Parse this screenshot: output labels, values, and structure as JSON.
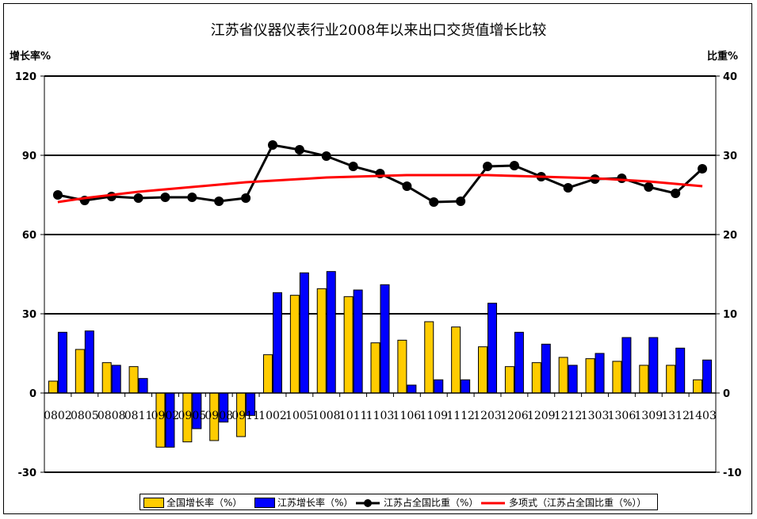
{
  "chart_data": {
    "type": "bar+line",
    "title": "江苏省仪器仪表行业2008年以来出口交货值增长比较",
    "ylabel_left": "增长率%",
    "ylabel_right": "比重%",
    "ylim_left": [
      -30,
      120
    ],
    "ylim_right": [
      -10,
      40
    ],
    "yticks_left": [
      -30,
      0,
      30,
      60,
      90,
      120
    ],
    "yticks_right": [
      -10,
      0,
      10,
      20,
      30,
      40
    ],
    "grid": true,
    "legend_position": "bottom",
    "categories": [
      "0802",
      "0805",
      "0808",
      "0811",
      "0902",
      "0905",
      "0908",
      "0911",
      "1002",
      "1005",
      "1008",
      "1011",
      "1103",
      "1106",
      "1109",
      "1112",
      "1203",
      "1206",
      "1209",
      "1212",
      "1303",
      "1306",
      "1309",
      "1312",
      "1403"
    ],
    "series": [
      {
        "name": "全国增长率（%）",
        "type": "bar",
        "axis": "left",
        "color": "#FFCC00",
        "values": [
          4.5,
          16.5,
          11.5,
          10,
          -20.5,
          -18.5,
          -18,
          -16.5,
          14.5,
          37,
          39.5,
          36.5,
          19,
          20,
          27,
          25,
          17.5,
          10,
          11.5,
          13.5,
          13,
          12,
          10.5,
          10.5,
          5
        ]
      },
      {
        "name": "江苏增长率（%）",
        "type": "bar",
        "axis": "left",
        "color": "#0000FF",
        "values": [
          23,
          23.5,
          10.5,
          5.5,
          -20.5,
          -13.5,
          -11,
          -8.5,
          38,
          45.5,
          46,
          39,
          41,
          3,
          5,
          5,
          34,
          23,
          18.5,
          10.5,
          15,
          21,
          21,
          17,
          12.5
        ]
      },
      {
        "name": "江苏占全国比重（%）",
        "type": "line",
        "axis": "right",
        "color": "#000000",
        "values": [
          25.0,
          24.3,
          24.8,
          24.6,
          24.7,
          24.7,
          24.2,
          24.6,
          31.3,
          30.7,
          29.9,
          28.6,
          27.7,
          26.1,
          24.1,
          24.2,
          28.6,
          28.7,
          27.3,
          25.9,
          27.0,
          27.1,
          26.0,
          25.2,
          28.3
        ]
      },
      {
        "name": "多项式（江苏占全国比重（%））",
        "type": "trend",
        "axis": "right",
        "color": "#FF0000",
        "values": [
          24.1,
          24.6,
          25.0,
          25.4,
          25.7,
          26.0,
          26.3,
          26.6,
          26.8,
          27.0,
          27.2,
          27.3,
          27.4,
          27.5,
          27.5,
          27.5,
          27.5,
          27.4,
          27.3,
          27.2,
          27.1,
          26.9,
          26.7,
          26.4,
          26.1
        ]
      }
    ]
  },
  "legend": {
    "item1": "全国增长率（%）",
    "item2": "江苏增长率（%）",
    "item3": "江苏占全国比重（%）",
    "item4": "多项式（江苏占全国比重（%））"
  }
}
